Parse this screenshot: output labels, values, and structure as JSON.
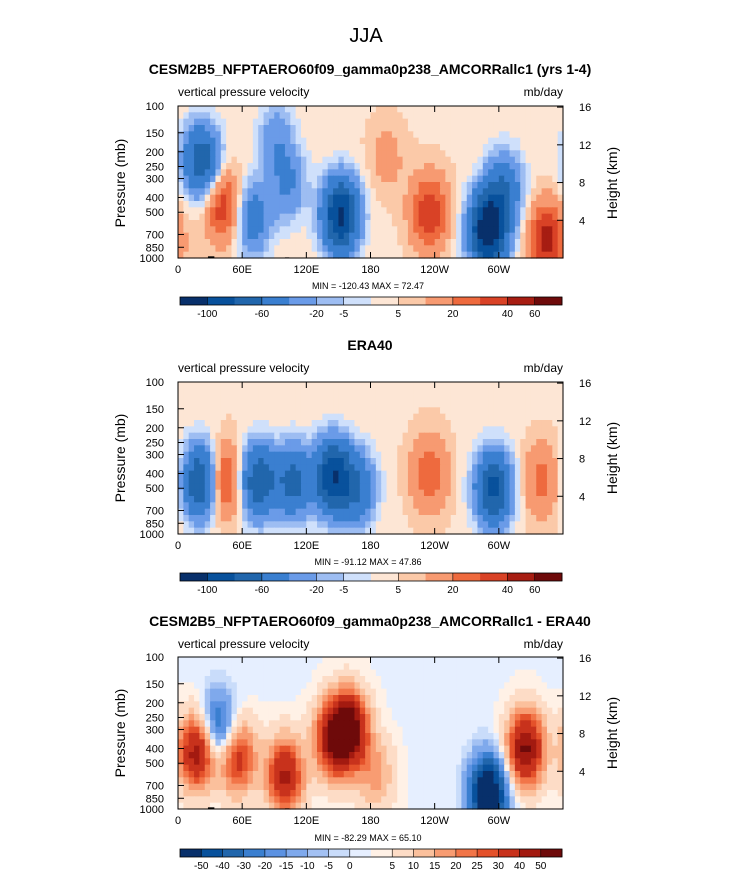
{
  "figure": {
    "title": "JJA"
  },
  "colors": {
    "field_palette": [
      "#08306b",
      "#08519c",
      "#2166ac",
      "#3a7fd0",
      "#6a9be8",
      "#9dbdf2",
      "#cfe0fb",
      "#fde6d5",
      "#fbc9a8",
      "#f79a71",
      "#ee6a3e",
      "#d94226",
      "#a71d12",
      "#6e0a0a"
    ],
    "diff_palette": [
      "#08306b",
      "#08519c",
      "#2166ac",
      "#3a7fd0",
      "#5c92e2",
      "#7fa9ec",
      "#a3c1f3",
      "#c9dcfa",
      "#e6efff",
      "#fff1e6",
      "#fddcc6",
      "#fbc09c",
      "#f89c72",
      "#f27548",
      "#e4512a",
      "#c8321c",
      "#a31a10",
      "#6e0a0a"
    ],
    "land_mask": "#000000"
  },
  "chart_data": [
    {
      "type": "heatmap",
      "title": "CESM2B5_NFPTAERO60f09_gamma0p238_AMCORRallc1 (yrs 1-4)",
      "subtitle_left": "vertical pressure velocity",
      "subtitle_right": "mb/day",
      "xlabel": "",
      "ylabel": "Pressure (mb)",
      "ylabel_right": "Height (km)",
      "x_ticks": [
        "0",
        "60E",
        "120E",
        "180",
        "120W",
        "60W"
      ],
      "y_ticks": [
        "100",
        "150",
        "200",
        "250",
        "300",
        "400",
        "500",
        "700",
        "850",
        "1000"
      ],
      "y_ticks_right": [
        "16",
        "12",
        "8",
        "4"
      ],
      "min_max": "MIN = -120.43   MAX =  72.47",
      "colorbar_labels": [
        "-100",
        "-60",
        "-20",
        "-5",
        "5",
        "20",
        "40",
        "60"
      ],
      "xlim": [
        0,
        360
      ],
      "ylim": [
        1000,
        100
      ],
      "key_centers": [
        {
          "lon": 22,
          "p": 230,
          "v": -60
        },
        {
          "lon": 42,
          "p": 450,
          "v": 35
        },
        {
          "lon": 70,
          "p": 550,
          "v": -35
        },
        {
          "lon": 92,
          "p": 160,
          "v": -20
        },
        {
          "lon": 103,
          "p": 330,
          "v": -25
        },
        {
          "lon": 152,
          "p": 520,
          "v": -90
        },
        {
          "lon": 195,
          "p": 220,
          "v": 10
        },
        {
          "lon": 235,
          "p": 500,
          "v": 35
        },
        {
          "lon": 290,
          "p": 650,
          "v": -110
        },
        {
          "lon": 305,
          "p": 350,
          "v": -40
        },
        {
          "lon": 345,
          "p": 750,
          "v": 40
        }
      ]
    },
    {
      "type": "heatmap",
      "title": "ERA40",
      "subtitle_left": "vertical pressure velocity",
      "subtitle_right": "mb/day",
      "xlabel": "",
      "ylabel": "Pressure (mb)",
      "ylabel_right": "Height (km)",
      "x_ticks": [
        "0",
        "60E",
        "120E",
        "180",
        "120W",
        "60W"
      ],
      "y_ticks": [
        "100",
        "150",
        "200",
        "250",
        "300",
        "400",
        "500",
        "700",
        "850",
        "1000"
      ],
      "y_ticks_right": [
        "16",
        "12",
        "8",
        "4"
      ],
      "min_max": "MIN = -91.12   MAX =  47.86",
      "colorbar_labels": [
        "-100",
        "-60",
        "-20",
        "-5",
        "5",
        "20",
        "40",
        "60"
      ],
      "xlim": [
        0,
        360
      ],
      "ylim": [
        1000,
        100
      ],
      "key_centers": [
        {
          "lon": 22,
          "p": 450,
          "v": -70
        },
        {
          "lon": 42,
          "p": 450,
          "v": 40
        },
        {
          "lon": 75,
          "p": 450,
          "v": -60
        },
        {
          "lon": 108,
          "p": 450,
          "v": -50
        },
        {
          "lon": 145,
          "p": 420,
          "v": -80
        },
        {
          "lon": 168,
          "p": 500,
          "v": -40
        },
        {
          "lon": 235,
          "p": 400,
          "v": 25
        },
        {
          "lon": 295,
          "p": 500,
          "v": -70
        },
        {
          "lon": 340,
          "p": 450,
          "v": 20
        }
      ]
    },
    {
      "type": "heatmap",
      "title": "CESM2B5_NFPTAERO60f09_gamma0p238_AMCORRallc1 - ERA40",
      "subtitle_left": "vertical pressure velocity",
      "subtitle_right": "mb/day",
      "xlabel": "",
      "ylabel": "Pressure (mb)",
      "ylabel_right": "Height (km)",
      "x_ticks": [
        "0",
        "60E",
        "120E",
        "180",
        "120W",
        "60W"
      ],
      "y_ticks": [
        "100",
        "150",
        "200",
        "250",
        "300",
        "400",
        "500",
        "700",
        "850",
        "1000"
      ],
      "y_ticks_right": [
        "16",
        "12",
        "8",
        "4"
      ],
      "min_max": "MIN = -82.29   MAX =  65.10",
      "colorbar_labels": [
        "-50",
        "-40",
        "-30",
        "-20",
        "-15",
        "-10",
        "-5",
        "0",
        "5",
        "10",
        "15",
        "20",
        "25",
        "30",
        "40",
        "50"
      ],
      "xlim": [
        0,
        360
      ],
      "ylim": [
        1000,
        100
      ],
      "key_centers": [
        {
          "lon": 18,
          "p": 420,
          "v": 45
        },
        {
          "lon": 38,
          "p": 300,
          "v": -30
        },
        {
          "lon": 55,
          "p": 450,
          "v": 35
        },
        {
          "lon": 100,
          "p": 600,
          "v": 40
        },
        {
          "lon": 145,
          "p": 350,
          "v": 40
        },
        {
          "lon": 160,
          "p": 300,
          "v": 55
        },
        {
          "lon": 185,
          "p": 600,
          "v": 15
        },
        {
          "lon": 290,
          "p": 800,
          "v": -60
        },
        {
          "lon": 325,
          "p": 400,
          "v": 50
        }
      ]
    }
  ]
}
